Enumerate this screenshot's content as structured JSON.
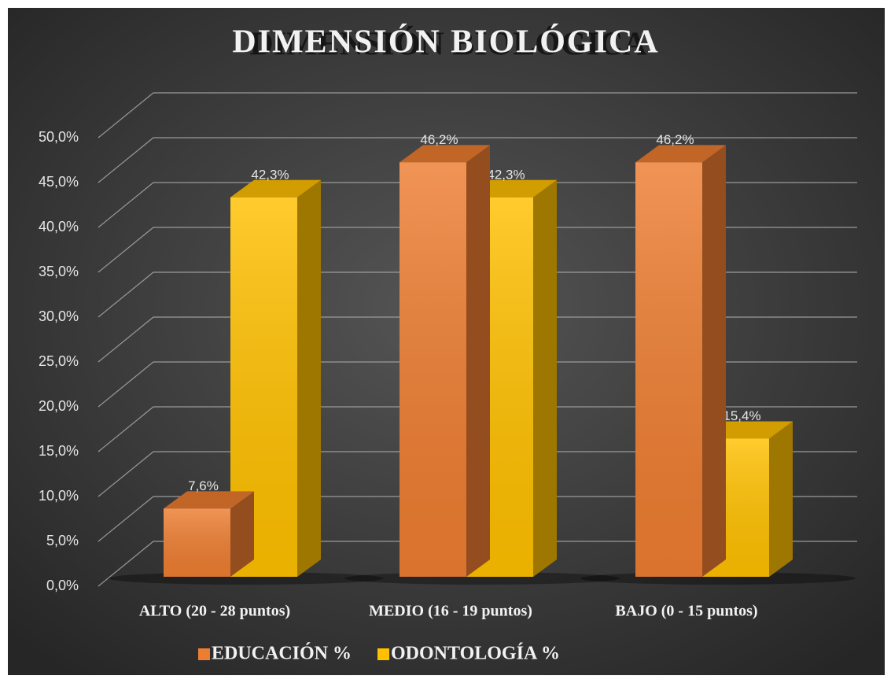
{
  "chart_data": {
    "type": "bar3d",
    "title": "DIMENSIÓN BIOLÓGICA",
    "categories": [
      "ALTO (20 - 28 puntos)",
      "MEDIO (16 - 19 puntos)",
      "BAJO (0 - 15 puntos)"
    ],
    "series": [
      {
        "name": "EDUCACIÓN %",
        "color": "#ED7D31",
        "values": [
          7.6,
          46.2,
          46.2
        ],
        "value_labels": [
          "7,6%",
          "46,2%",
          "46,2%"
        ]
      },
      {
        "name": "ODONTOLOGÍA %",
        "color": "#FFC000",
        "values": [
          42.3,
          42.3,
          15.4
        ],
        "value_labels": [
          "42,3%",
          "42,3%",
          "15,4%"
        ]
      }
    ],
    "ylim": [
      0,
      50
    ],
    "yticks": [
      {
        "value": 0,
        "label": "0,0%"
      },
      {
        "value": 5,
        "label": "5,0%"
      },
      {
        "value": 10,
        "label": "10,0%"
      },
      {
        "value": 15,
        "label": "15,0%"
      },
      {
        "value": 20,
        "label": "20,0%"
      },
      {
        "value": 25,
        "label": "25,0%"
      },
      {
        "value": 30,
        "label": "30,0%"
      },
      {
        "value": 35,
        "label": "35,0%"
      },
      {
        "value": 40,
        "label": "40,0%"
      },
      {
        "value": 45,
        "label": "45,0%"
      },
      {
        "value": 50,
        "label": "50,0%"
      }
    ],
    "grid": true,
    "legend": "bottom"
  }
}
